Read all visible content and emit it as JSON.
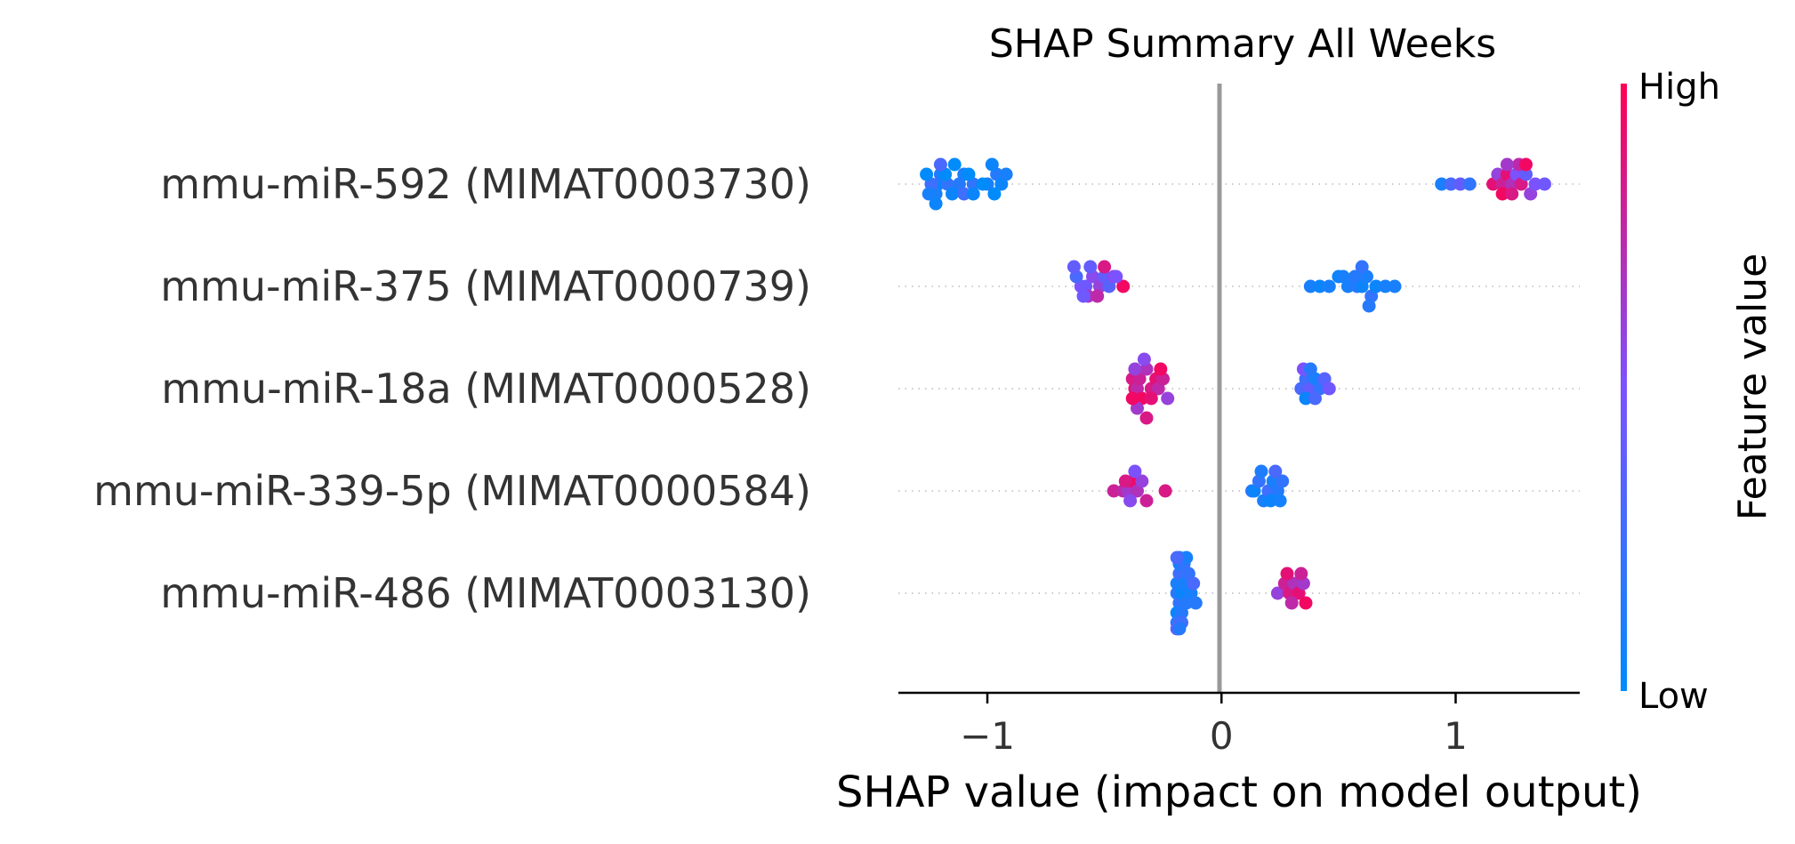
{
  "chart_data": {
    "type": "scatter",
    "title": "SHAP Summary All Weeks",
    "xlabel": "SHAP value (impact on model output)",
    "ylabel": "",
    "xlim": [
      -1.38,
      1.53
    ],
    "xticks": [
      -1,
      0,
      1
    ],
    "xtick_labels": [
      "−1",
      "0",
      "1"
    ],
    "grid": false,
    "zero_line": true,
    "colorbar": {
      "label": "Feature value",
      "high_label": "High",
      "low_label": "Low",
      "high_color": "#ff0052",
      "mid_color": "#7c52ff",
      "low_color": "#008bfb"
    },
    "features": [
      {
        "name": "mmu-miR-592 (MIMAT0003730)",
        "points": [
          [
            -1.21,
            0.05
          ],
          [
            -1.2,
            0.15
          ],
          [
            -1.22,
            0.1
          ],
          [
            -1.17,
            0.2
          ],
          [
            -1.24,
            0.25
          ],
          [
            -1.12,
            0.15
          ],
          [
            -1.1,
            0.1
          ],
          [
            -1.06,
            0.2
          ],
          [
            -1.0,
            0.1
          ],
          [
            -0.96,
            0.15
          ],
          [
            -0.94,
            0.05
          ],
          [
            -0.92,
            0.1
          ],
          [
            -1.26,
            0.0
          ],
          [
            -1.18,
            0.0
          ],
          [
            -1.15,
            0.05
          ],
          [
            -1.08,
            0.0
          ],
          [
            -1.02,
            0.0
          ],
          [
            -0.97,
            0.0
          ],
          [
            -1.25,
            0.1
          ],
          [
            -1.2,
            0.3
          ],
          [
            -1.1,
            0.25
          ],
          [
            -1.22,
            0.05
          ],
          [
            -1.14,
            0.0
          ],
          [
            -1.06,
            0.05
          ],
          [
            -0.98,
            0.05
          ],
          [
            0.94,
            0.1
          ],
          [
            0.98,
            0.3
          ],
          [
            1.02,
            0.4
          ],
          [
            1.06,
            0.2
          ],
          [
            1.16,
            0.9
          ],
          [
            1.18,
            0.6
          ],
          [
            1.2,
            0.8
          ],
          [
            1.22,
            0.9
          ],
          [
            1.24,
            0.7
          ],
          [
            1.26,
            0.5
          ],
          [
            1.28,
            0.85
          ],
          [
            1.3,
            0.4
          ],
          [
            1.32,
            0.6
          ],
          [
            1.34,
            0.5
          ],
          [
            1.38,
            0.45
          ],
          [
            1.2,
            0.95
          ],
          [
            1.24,
            0.85
          ],
          [
            1.27,
            0.75
          ],
          [
            1.3,
            0.95
          ],
          [
            1.22,
            0.65
          ]
        ]
      },
      {
        "name": "mmu-miR-375 (MIMAT0000739)",
        "points": [
          [
            -0.6,
            0.5
          ],
          [
            -0.58,
            0.45
          ],
          [
            -0.55,
            0.55
          ],
          [
            -0.52,
            0.6
          ],
          [
            -0.5,
            0.4
          ],
          [
            -0.48,
            0.35
          ],
          [
            -0.46,
            0.55
          ],
          [
            -0.62,
            0.3
          ],
          [
            -0.57,
            0.65
          ],
          [
            -0.53,
            0.75
          ],
          [
            -0.5,
            0.85
          ],
          [
            -0.42,
            0.95
          ],
          [
            -0.56,
            0.4
          ],
          [
            -0.45,
            0.5
          ],
          [
            -0.59,
            0.45
          ],
          [
            -0.63,
            0.4
          ],
          [
            0.38,
            0.1
          ],
          [
            0.42,
            0.05
          ],
          [
            0.46,
            0.1
          ],
          [
            0.5,
            0.05
          ],
          [
            0.54,
            0.1
          ],
          [
            0.58,
            0.15
          ],
          [
            0.6,
            0.05
          ],
          [
            0.62,
            0.1
          ],
          [
            0.64,
            0.2
          ],
          [
            0.66,
            0.05
          ],
          [
            0.7,
            0.1
          ],
          [
            0.74,
            0.1
          ],
          [
            0.57,
            0.15
          ],
          [
            0.6,
            0.2
          ],
          [
            0.63,
            0.15
          ],
          [
            0.52,
            0.1
          ]
        ]
      },
      {
        "name": "mmu-miR-18a (MIMAT0000528)",
        "points": [
          [
            -0.37,
            0.9
          ],
          [
            -0.38,
            0.85
          ],
          [
            -0.36,
            0.75
          ],
          [
            -0.35,
            0.8
          ],
          [
            -0.34,
            0.95
          ],
          [
            -0.32,
            0.7
          ],
          [
            -0.3,
            0.85
          ],
          [
            -0.28,
            0.9
          ],
          [
            -0.27,
            0.75
          ],
          [
            -0.25,
            0.8
          ],
          [
            -0.23,
            0.6
          ],
          [
            -0.36,
            0.65
          ],
          [
            -0.33,
            0.55
          ],
          [
            -0.3,
            0.9
          ],
          [
            -0.26,
            0.95
          ],
          [
            -0.38,
            0.95
          ],
          [
            -0.37,
            0.6
          ],
          [
            -0.32,
            0.85
          ],
          [
            0.34,
            0.3
          ],
          [
            0.36,
            0.25
          ],
          [
            0.38,
            0.4
          ],
          [
            0.4,
            0.1
          ],
          [
            0.42,
            0.2
          ],
          [
            0.44,
            0.35
          ],
          [
            0.46,
            0.45
          ],
          [
            0.36,
            0.05
          ],
          [
            0.4,
            0.3
          ],
          [
            0.35,
            0.5
          ],
          [
            0.38,
            0.15
          ]
        ]
      },
      {
        "name": "mmu-miR-339-5p (MIMAT0000584)",
        "points": [
          [
            -0.46,
            0.8
          ],
          [
            -0.42,
            0.75
          ],
          [
            -0.4,
            0.65
          ],
          [
            -0.38,
            0.95
          ],
          [
            -0.36,
            0.7
          ],
          [
            -0.34,
            0.6
          ],
          [
            -0.32,
            0.8
          ],
          [
            -0.24,
            0.85
          ],
          [
            -0.39,
            0.55
          ],
          [
            -0.41,
            0.85
          ],
          [
            -0.37,
            0.5
          ],
          [
            0.13,
            0.15
          ],
          [
            0.14,
            0.05
          ],
          [
            0.16,
            0.2
          ],
          [
            0.18,
            0.1
          ],
          [
            0.2,
            0.25
          ],
          [
            0.22,
            0.1
          ],
          [
            0.24,
            0.15
          ],
          [
            0.26,
            0.2
          ],
          [
            0.21,
            0.05
          ],
          [
            0.23,
            0.3
          ],
          [
            0.17,
            0.12
          ],
          [
            0.25,
            0.08
          ]
        ]
      },
      {
        "name": "mmu-miR-486 (MIMAT0003130)",
        "points": [
          [
            -0.19,
            0.15
          ],
          [
            -0.19,
            0.1
          ],
          [
            -0.18,
            0.2
          ],
          [
            -0.17,
            0.05
          ],
          [
            -0.18,
            0.25
          ],
          [
            -0.16,
            0.1
          ],
          [
            -0.15,
            0.15
          ],
          [
            -0.14,
            0.2
          ],
          [
            -0.13,
            0.1
          ],
          [
            -0.12,
            0.3
          ],
          [
            -0.11,
            0.15
          ],
          [
            -0.19,
            0.05
          ],
          [
            -0.18,
            0.1
          ],
          [
            -0.19,
            0.2
          ],
          [
            -0.17,
            0.15
          ],
          [
            -0.18,
            0.05
          ],
          [
            -0.16,
            0.2
          ],
          [
            -0.19,
            0.35
          ],
          [
            -0.17,
            0.25
          ],
          [
            -0.15,
            0.1
          ],
          [
            -0.19,
            0.3
          ],
          [
            -0.18,
            0.15
          ],
          [
            0.24,
            0.6
          ],
          [
            0.27,
            0.8
          ],
          [
            0.29,
            0.85
          ],
          [
            0.31,
            0.7
          ],
          [
            0.33,
            0.9
          ],
          [
            0.35,
            0.65
          ],
          [
            0.36,
            0.95
          ],
          [
            0.3,
            0.75
          ],
          [
            0.28,
            0.9
          ],
          [
            0.34,
            0.8
          ]
        ]
      }
    ]
  }
}
